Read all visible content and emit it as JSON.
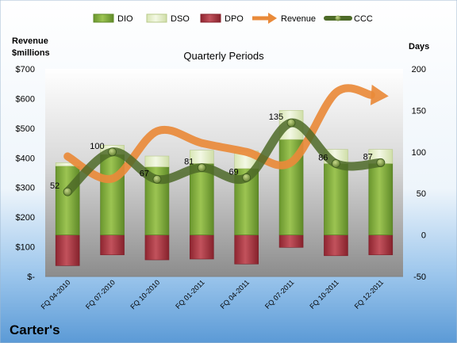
{
  "chart_data": {
    "type": "combo",
    "title": "Quarterly Periods",
    "company": "Carter's",
    "left_axis": {
      "label_line1": "Revenue",
      "label_line2": "$millions",
      "range": [
        0,
        700
      ],
      "ticks": [
        {
          "value": 0,
          "label": "$-"
        },
        {
          "value": 100,
          "label": "$100"
        },
        {
          "value": 200,
          "label": "$200"
        },
        {
          "value": 300,
          "label": "$300"
        },
        {
          "value": 400,
          "label": "$400"
        },
        {
          "value": 500,
          "label": "$500"
        },
        {
          "value": 600,
          "label": "$600"
        },
        {
          "value": 700,
          "label": "$700"
        }
      ]
    },
    "right_axis": {
      "label": "Days",
      "range": [
        -50,
        200
      ],
      "ticks": [
        {
          "value": -50,
          "label": "-50"
        },
        {
          "value": 0,
          "label": "0"
        },
        {
          "value": 50,
          "label": "50"
        },
        {
          "value": 100,
          "label": "100"
        },
        {
          "value": 150,
          "label": "150"
        },
        {
          "value": 200,
          "label": "200"
        }
      ]
    },
    "categories": [
      "FQ 04-2010",
      "FQ 07-2010",
      "FQ 10-2010",
      "FQ 01-2011",
      "FQ 04-2011",
      "FQ 07-2011",
      "FQ 10-2011",
      "FQ 12-2011"
    ],
    "legend": [
      "DIO",
      "DSO",
      "DPO",
      "Revenue",
      "CCC"
    ],
    "series": [
      {
        "name": "DIO",
        "axis": "right",
        "color": "#7aa83a",
        "values": [
          83,
          97,
          82,
          86,
          80,
          115,
          86,
          86
        ]
      },
      {
        "name": "DSO",
        "axis": "right",
        "color": "#e6f0c8",
        "values": [
          4,
          11,
          13,
          16,
          21,
          35,
          17,
          17
        ]
      },
      {
        "name": "DPO",
        "axis": "right",
        "color": "#b23a44",
        "values": [
          -37,
          -24,
          -30,
          -29,
          -35,
          -15,
          -25,
          -24
        ]
      },
      {
        "name": "Revenue",
        "axis": "left",
        "color": "#e98a3a",
        "values": [
          405,
          330,
          490,
          450,
          420,
          385,
          620,
          610
        ]
      },
      {
        "name": "CCC",
        "axis": "right",
        "color": "#4d6a28",
        "values": [
          52,
          100,
          67,
          81,
          69,
          135,
          86,
          87
        ],
        "labels": [
          "52",
          "100",
          "67",
          "81",
          "69",
          "135",
          "86",
          "87"
        ]
      }
    ],
    "grid": false,
    "legend_position": "top"
  }
}
